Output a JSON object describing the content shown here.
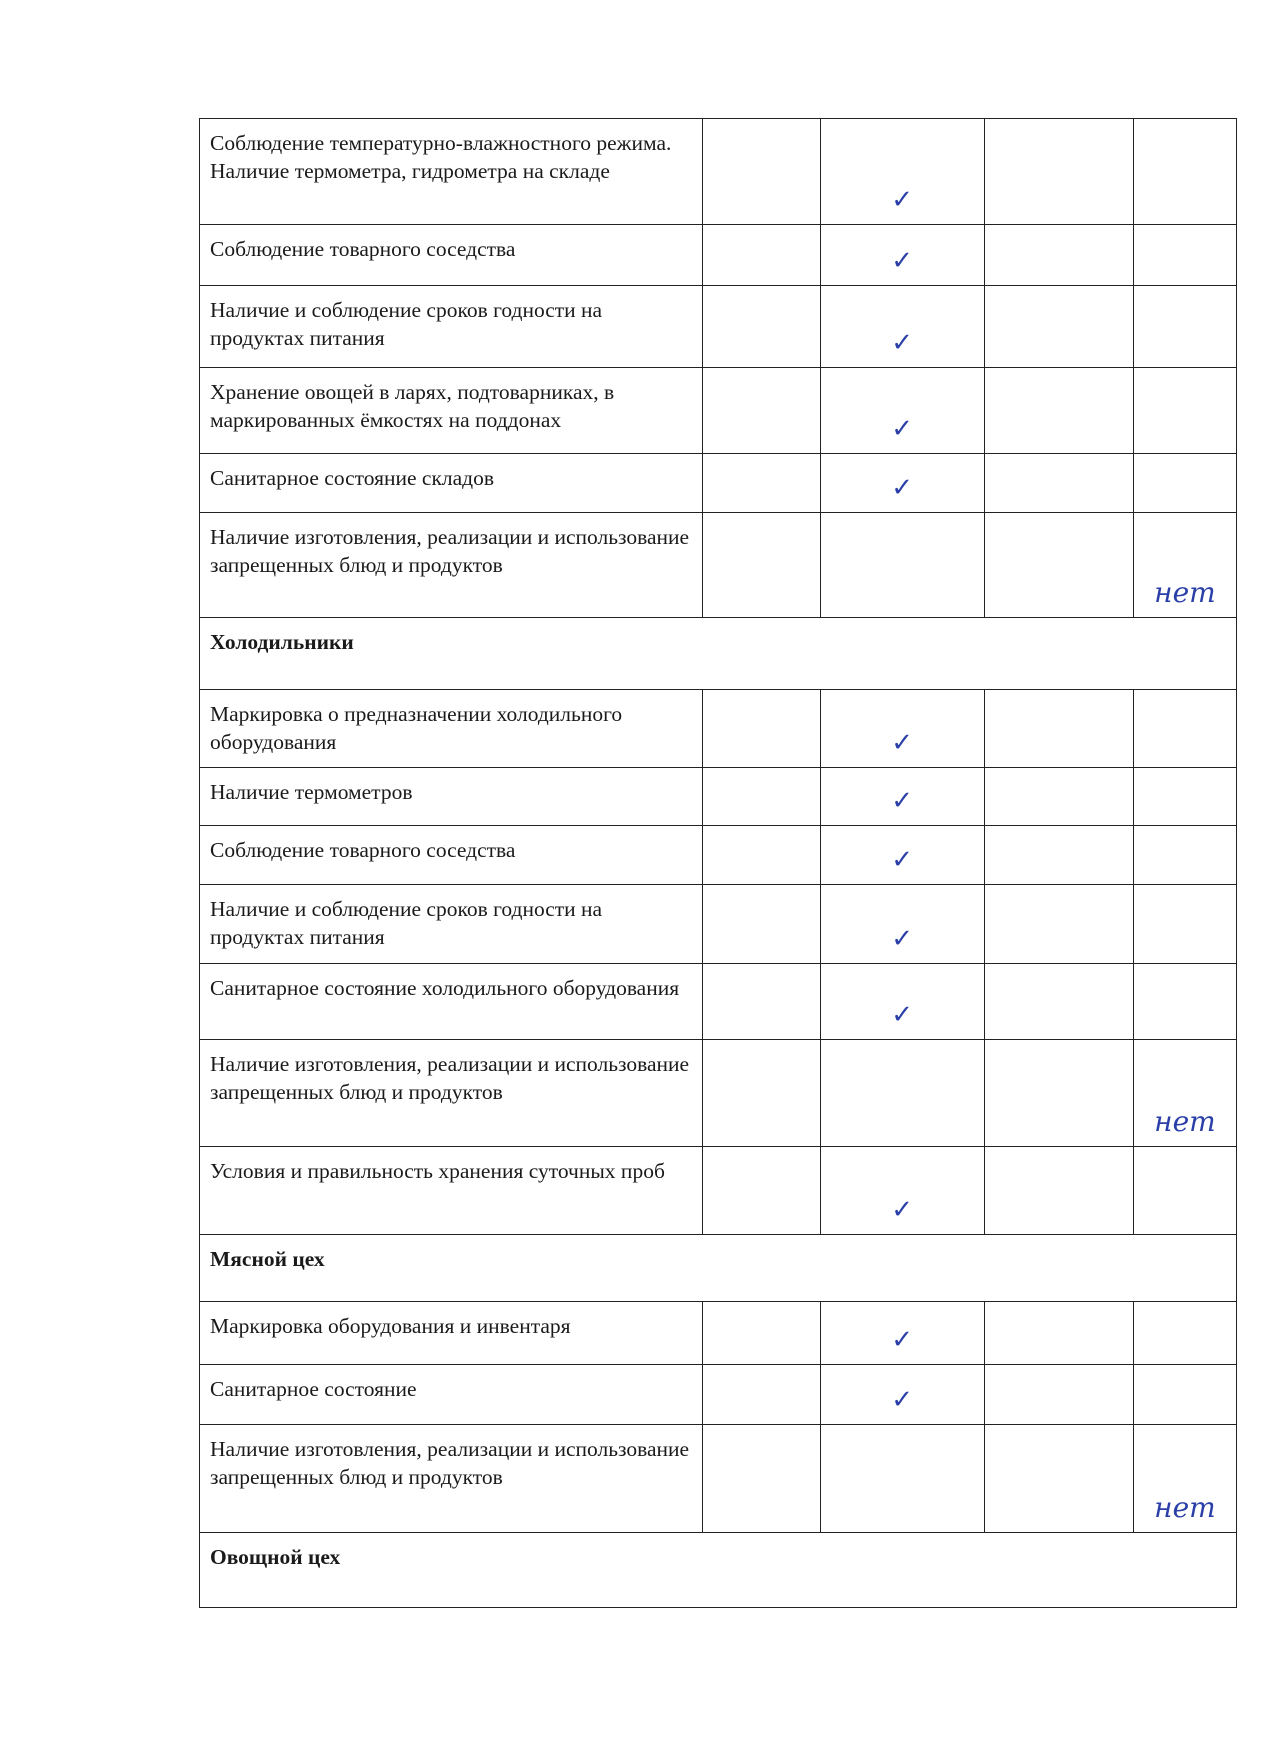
{
  "check_color": "#2b3fa8",
  "rows": [
    {
      "type": "item",
      "text": "Соблюдение температурно-влажностного режима. Наличие термометра, гидрометра на складе",
      "mark": "✓",
      "h": 106
    },
    {
      "type": "item",
      "text": "Соблюдение товарного соседства",
      "mark": "✓",
      "h": 61
    },
    {
      "type": "item",
      "text": "Наличие и соблюдение сроков годности на продуктах питания",
      "mark": "✓",
      "h": 82
    },
    {
      "type": "item",
      "text": "Хранение овощей в ларях, подтоварниках,  в маркированных ёмкостях на поддонах",
      "mark": "✓",
      "h": 86
    },
    {
      "type": "item",
      "text": "Санитарное состояние складов",
      "mark": "✓",
      "h": 59
    },
    {
      "type": "item",
      "text": "Наличие изготовления, реализации и использование запрещенных  блюд и продуктов",
      "no": "нет",
      "h": 105
    },
    {
      "type": "section",
      "text": "Холодильники",
      "h": 72
    },
    {
      "type": "item",
      "text": "Маркировка о предназначении холодильного оборудования",
      "mark": "✓",
      "h": 78
    },
    {
      "type": "item",
      "text": "Наличие термометров",
      "mark": "✓",
      "h": 58
    },
    {
      "type": "item",
      "text": "Соблюдение товарного соседства",
      "mark": "✓",
      "h": 59
    },
    {
      "type": "item",
      "text": "Наличие и соблюдение сроков годности на продуктах питания",
      "mark": "✓",
      "h": 79
    },
    {
      "type": "item",
      "text": "Санитарное состояние холодильного оборудования",
      "mark": "✓",
      "h": 76
    },
    {
      "type": "item",
      "text": "Наличие изготовления, реализации и использование запрещенных  блюд и продуктов",
      "no": "нет",
      "h": 107
    },
    {
      "type": "item",
      "text": "Условия и правильность хранения суточных проб",
      "mark": "✓",
      "h": 88
    },
    {
      "type": "section",
      "text": "Мясной цех",
      "h": 67
    },
    {
      "type": "item",
      "text": "Маркировка оборудования и инвентаря",
      "mark": "✓",
      "h": 63
    },
    {
      "type": "item",
      "text": "Санитарное состояние",
      "mark": "✓",
      "h": 60
    },
    {
      "type": "item",
      "text": "Наличие изготовления, реализации и использование запрещенных  блюд и продуктов",
      "no": "нет",
      "h": 108
    },
    {
      "type": "section",
      "text": "Овощной цех",
      "h": 75
    }
  ]
}
